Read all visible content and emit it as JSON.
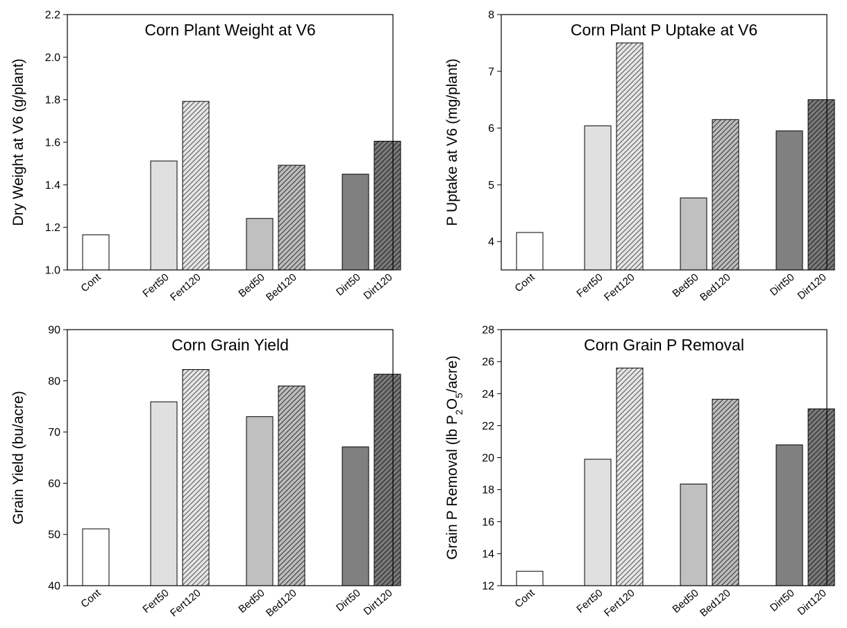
{
  "chart_data": [
    {
      "type": "bar",
      "title": "Corn Plant Weight at V6",
      "ylabel": "Dry Weight at V6 (g/plant)",
      "ylabel_parts": [
        {
          "t": "Dry Weight at V6 (g/plant)"
        }
      ],
      "xlabel": "",
      "categories": [
        "Cont",
        "Fert50",
        "Fert120",
        "Bed50",
        "Bed120",
        "Dirt50",
        "Dirt120"
      ],
      "values": [
        1.165,
        1.512,
        1.792,
        1.242,
        1.492,
        1.45,
        1.605
      ],
      "ylim": [
        1.0,
        2.2
      ],
      "yticks": [
        1.0,
        1.2,
        1.4,
        1.6,
        1.8,
        2.0,
        2.2
      ],
      "ytick_labels": [
        "1.0",
        "1.2",
        "1.4",
        "1.6",
        "1.8",
        "2.0",
        "2.2"
      ],
      "grid": false,
      "legend": "none"
    },
    {
      "type": "bar",
      "title": "Corn Plant P Uptake at V6",
      "ylabel": "P Uptake at V6 (mg/plant)",
      "ylabel_parts": [
        {
          "t": "P Uptake at V6 (mg/plant)"
        }
      ],
      "xlabel": "",
      "categories": [
        "Cont",
        "Fert50",
        "Fert120",
        "Bed50",
        "Bed120",
        "Dirt50",
        "Dirt120"
      ],
      "values": [
        4.16,
        6.04,
        7.5,
        4.77,
        6.15,
        5.95,
        6.5
      ],
      "ylim": [
        3.5,
        8
      ],
      "yticks": [
        4,
        5,
        6,
        7,
        8
      ],
      "ytick_labels": [
        "4",
        "5",
        "6",
        "7",
        "8"
      ],
      "grid": false,
      "legend": "none"
    },
    {
      "type": "bar",
      "title": "Corn Grain Yield",
      "ylabel": "Grain Yield (bu/acre)",
      "ylabel_parts": [
        {
          "t": "Grain Yield (bu/acre)"
        }
      ],
      "xlabel": "",
      "categories": [
        "Cont",
        "Fert50",
        "Fert120",
        "Bed50",
        "Bed120",
        "Dirt50",
        "Dirt120"
      ],
      "values": [
        51.1,
        75.9,
        82.2,
        73.0,
        79.0,
        67.1,
        81.3
      ],
      "ylim": [
        40,
        90
      ],
      "yticks": [
        40,
        50,
        60,
        70,
        80,
        90
      ],
      "ytick_labels": [
        "40",
        "50",
        "60",
        "70",
        "80",
        "90"
      ],
      "grid": false,
      "legend": "none"
    },
    {
      "type": "bar",
      "title": "Corn Grain P Removal",
      "ylabel": "Grain P Removal (lb P2O5/acre)",
      "ylabel_parts": [
        {
          "t": "Grain P Removal (lb P"
        },
        {
          "t": "2",
          "sub": true
        },
        {
          "t": "O"
        },
        {
          "t": "5",
          "sub": true
        },
        {
          "t": "/acre)"
        }
      ],
      "xlabel": "",
      "categories": [
        "Cont",
        "Fert50",
        "Fert120",
        "Bed50",
        "Bed120",
        "Dirt50",
        "Dirt120"
      ],
      "values": [
        12.9,
        19.9,
        25.6,
        18.35,
        23.65,
        20.8,
        23.05
      ],
      "ylim": [
        12,
        28
      ],
      "yticks": [
        12,
        14,
        16,
        18,
        20,
        22,
        24,
        26,
        28
      ],
      "ytick_labels": [
        "12",
        "14",
        "16",
        "18",
        "20",
        "22",
        "24",
        "26",
        "28"
      ],
      "grid": false,
      "legend": "none"
    }
  ],
  "bar_styles": {
    "Cont": {
      "fill": "#ffffff",
      "hatch": false
    },
    "Fert50": {
      "fill": "#e0e0e0",
      "hatch": false
    },
    "Fert120": {
      "fill": "#e6e6e6",
      "hatch": true,
      "hatch_color": "#666666"
    },
    "Bed50": {
      "fill": "#c0c0c0",
      "hatch": false
    },
    "Bed120": {
      "fill": "#bdbdbd",
      "hatch": true,
      "hatch_color": "#444444"
    },
    "Dirt50": {
      "fill": "#808080",
      "hatch": false
    },
    "Dirt120": {
      "fill": "#7a7a7a",
      "hatch": true,
      "hatch_color": "#2a2a2a"
    }
  }
}
